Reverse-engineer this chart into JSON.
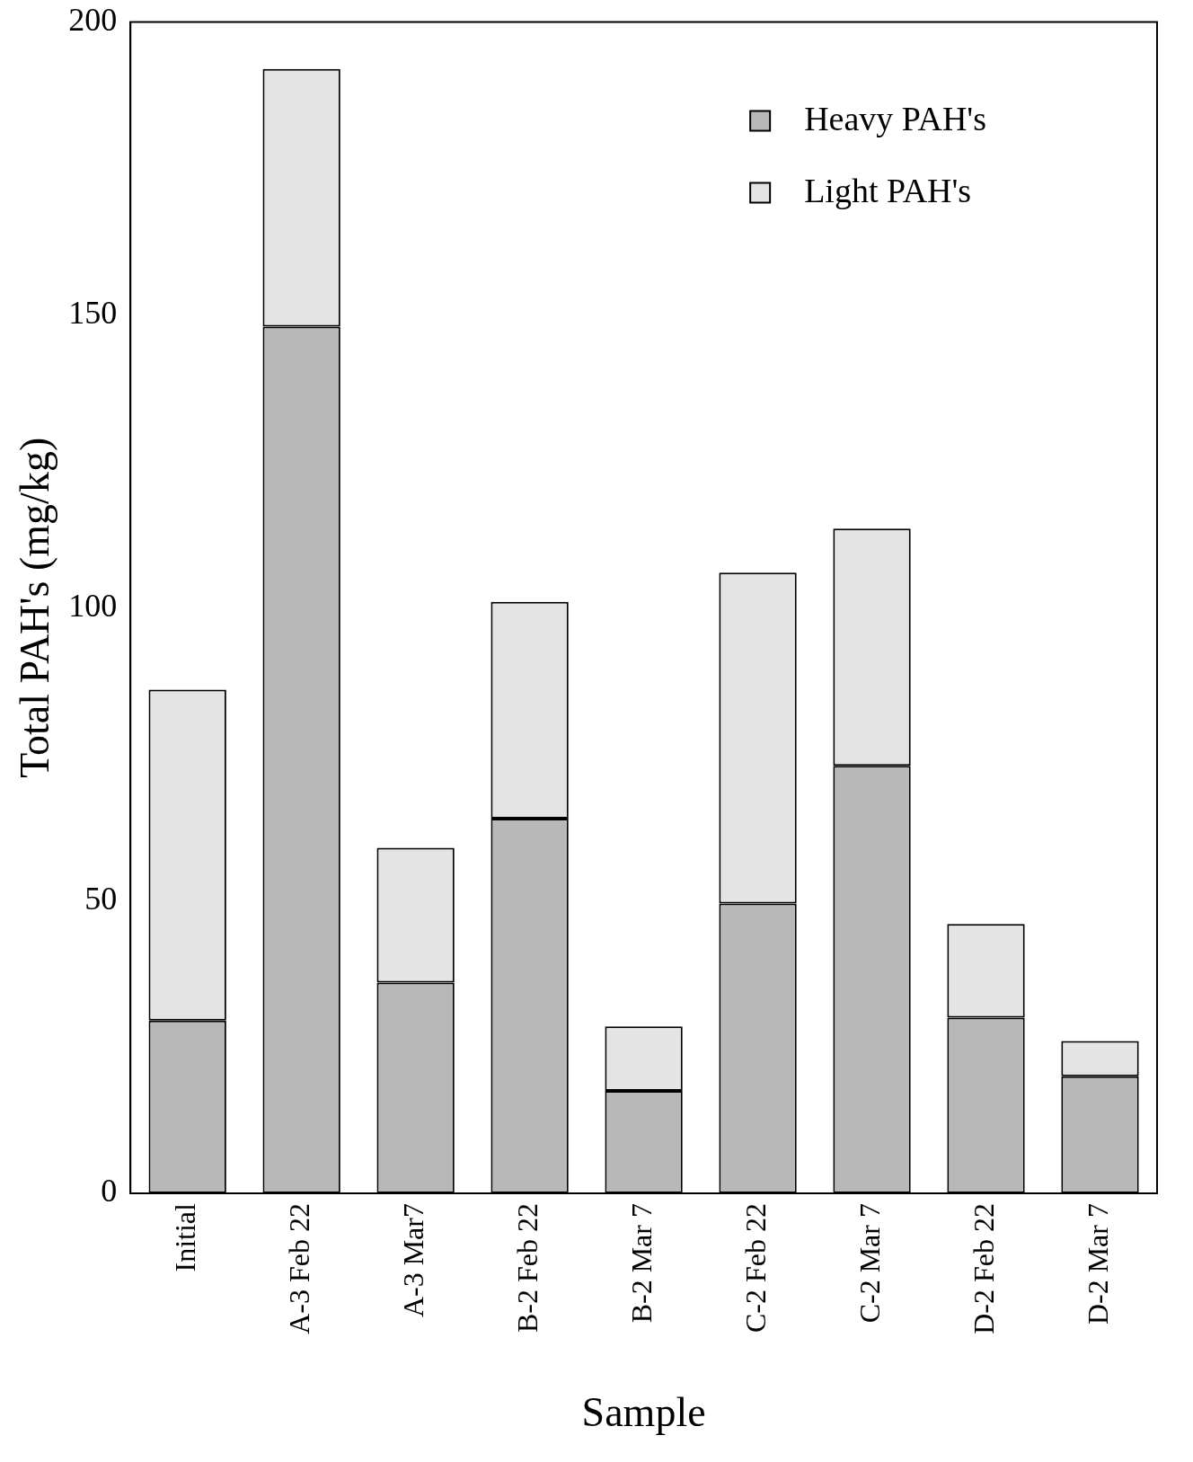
{
  "chart_data": {
    "type": "bar",
    "stacked": true,
    "xlabel": "Sample",
    "ylabel": "Total PAH's (mg/kg)",
    "categories": [
      "Initial",
      "A-3 Feb 22",
      "A-3 Mar7",
      "B-2 Feb 22",
      "B-2 Mar 7",
      "C-2 Feb 22",
      "C-2 Mar 7",
      "D-2 Feb 22",
      "D-2 Mar 7"
    ],
    "series": [
      {
        "name": "Heavy PAH's",
        "color": "#b8b8b8",
        "values": [
          29.5,
          148,
          36,
          64,
          17.5,
          49.5,
          73,
          30,
          20
        ]
      },
      {
        "name": "Light PAH's",
        "color": "#e4e4e4",
        "values": [
          56.5,
          44,
          23,
          37,
          11,
          56.5,
          40.5,
          16,
          6
        ]
      }
    ],
    "ylim": [
      0,
      200
    ],
    "yticks": [
      0,
      50,
      100,
      150,
      200
    ],
    "grid": false,
    "legend": "top right"
  }
}
